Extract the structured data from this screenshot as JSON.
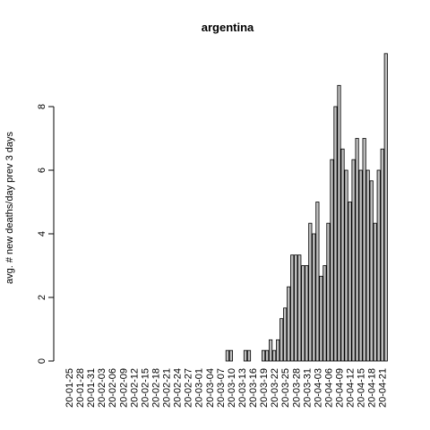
{
  "chart_data": {
    "type": "bar",
    "title": "argentina",
    "y_label": "avg. # new deaths/day prev  3  days",
    "categories": [
      "20-01-25",
      null,
      null,
      "20-01-28",
      null,
      null,
      "20-01-31",
      null,
      null,
      "20-02-03",
      null,
      null,
      "20-02-06",
      null,
      null,
      "20-02-09",
      null,
      null,
      "20-02-12",
      null,
      null,
      "20-02-15",
      null,
      null,
      "20-02-18",
      null,
      null,
      "20-02-21",
      null,
      null,
      "20-02-24",
      null,
      null,
      "20-02-27",
      null,
      null,
      "20-03-01",
      null,
      null,
      "20-03-04",
      null,
      null,
      "20-03-07",
      null,
      null,
      "20-03-10",
      null,
      null,
      "20-03-13",
      null,
      null,
      "20-03-16",
      null,
      null,
      "20-03-19",
      null,
      null,
      "20-03-22",
      null,
      null,
      "20-03-25",
      null,
      null,
      "20-03-28",
      null,
      null,
      "20-03-31",
      null,
      null,
      "20-04-03",
      null,
      null,
      "20-04-06",
      null,
      null,
      "20-04-09",
      null,
      null,
      "20-04-12",
      null,
      null,
      "20-04-15",
      null,
      null,
      "20-04-18",
      null,
      null,
      "20-04-21",
      null
    ],
    "values": [
      0,
      0,
      0,
      0,
      0,
      0,
      0,
      0,
      0,
      0,
      0,
      0,
      0,
      0,
      0,
      0,
      0,
      0,
      0,
      0,
      0,
      0,
      0,
      0,
      0,
      0,
      0,
      0,
      0,
      0,
      0,
      0,
      0,
      0,
      0,
      0,
      0,
      0,
      0,
      0,
      0,
      0,
      0,
      0,
      0.333,
      0.333,
      0,
      0,
      0,
      0.333,
      0.333,
      0,
      0,
      0,
      0.333,
      0.333,
      0.667,
      0.333,
      0.667,
      1.333,
      1.667,
      2.333,
      3.333,
      3.333,
      3.333,
      3,
      3,
      4.333,
      4,
      5,
      2.667,
      3,
      4.333,
      6.333,
      8,
      8.667,
      6.667,
      6,
      5,
      6.333,
      7,
      6,
      7,
      6,
      5.667,
      4.333,
      6,
      6.667,
      9.667
    ],
    "color": "#bebebe",
    "ylim": [
      0,
      10
    ],
    "yticks": [
      0,
      2,
      4,
      6,
      8
    ]
  }
}
